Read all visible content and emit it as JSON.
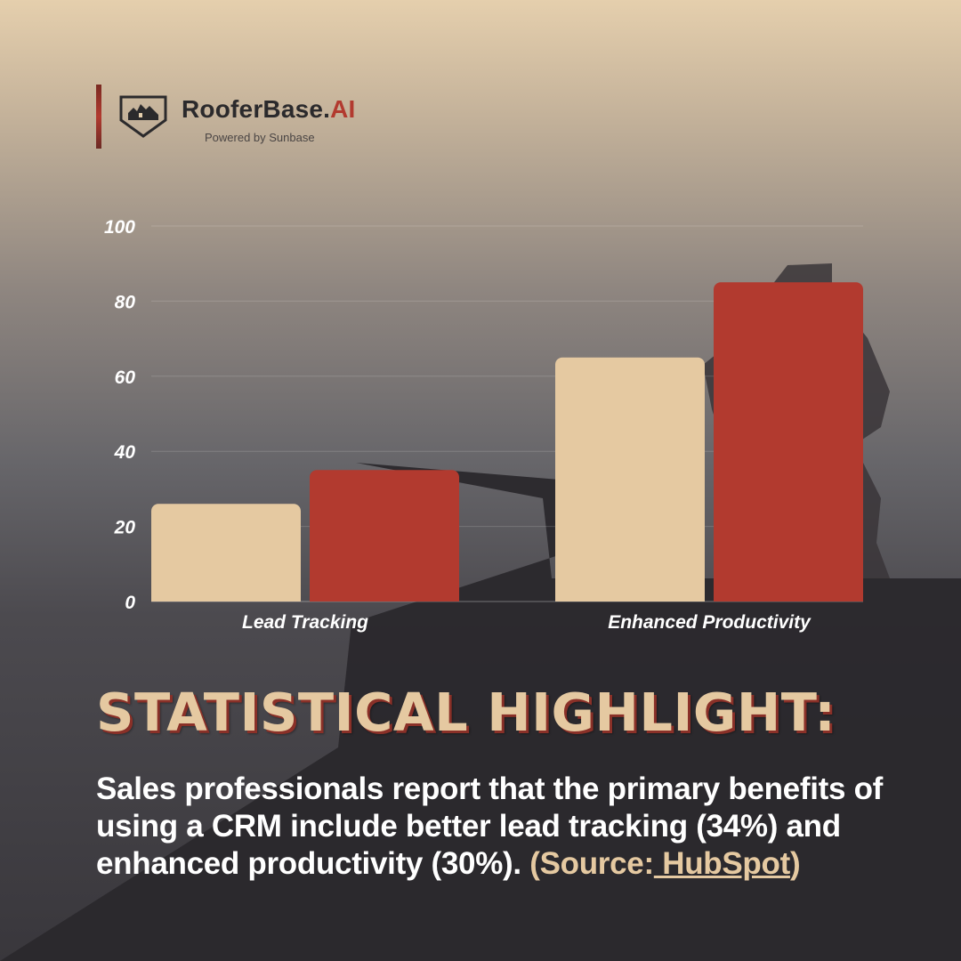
{
  "logo": {
    "brand_main": "RooferBase.",
    "brand_ai": "AI",
    "tagline": "Powered by Sunbase"
  },
  "chart_data": {
    "type": "bar",
    "categories": [
      "Lead Tracking",
      "Enhanced Productivity"
    ],
    "series": [
      {
        "values": [
          26,
          65
        ]
      },
      {
        "values": [
          35,
          85
        ]
      }
    ],
    "ylim": [
      0,
      100
    ],
    "yticks": [
      0,
      20,
      40,
      60,
      80,
      100
    ],
    "grid": true,
    "legend": "none",
    "colors": [
      "#e5c9a1",
      "#b23a2f"
    ]
  },
  "highlight": {
    "title": "STATISTICAL HIGHLIGHT:"
  },
  "body": {
    "text": "Sales professionals report that the primary benefits of using a CRM include better lead tracking (34%) and enhanced productivity (30%). ",
    "source_open": "(Source:",
    "source_link": " HubSpot",
    "source_close": ")"
  },
  "colors": {
    "accent": "#b23a2f",
    "cream": "#e5c9a1",
    "text_white": "#ffffff"
  }
}
